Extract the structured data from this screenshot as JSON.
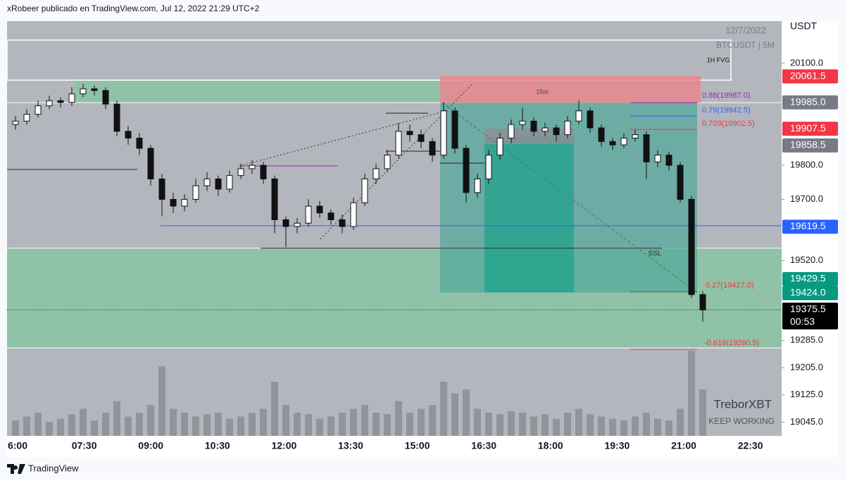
{
  "header": {
    "text": "xRobeer publicado en TradingView.com, Jul 12, 2022 21:29 UTC+2"
  },
  "footer": {
    "brand": "TradingView"
  },
  "chart_data": {
    "type": "candlestick",
    "date": "12/7/2022",
    "symbol": "BTCUSDT | 5M",
    "currency": "USDT",
    "ylim": [
      19004.5,
      20224
    ],
    "yticks": [
      {
        "value": 20100,
        "label": "20100.0"
      },
      {
        "value": 19800,
        "label": "19800.0"
      },
      {
        "value": 19700,
        "label": "19700.0"
      },
      {
        "value": 19520,
        "label": "19520.0"
      },
      {
        "value": 19285,
        "label": "19285.0"
      },
      {
        "value": 19205,
        "label": "19205.0"
      },
      {
        "value": 19125,
        "label": "19125.0"
      },
      {
        "value": 19045,
        "label": "19045.0"
      }
    ],
    "xticks": [
      "6:00",
      "07:30",
      "09:00",
      "10:30",
      "12:00",
      "13:30",
      "15:00",
      "16:30",
      "18:00",
      "19:30",
      "21:00",
      "22:30"
    ],
    "price_labels": [
      {
        "value": 20061.5,
        "label": "20061.5",
        "color": "#f23645"
      },
      {
        "value": 19985,
        "label": "19985.0",
        "color": "#787b86"
      },
      {
        "value": 19907.5,
        "label": "19907.5",
        "color": "#f23645"
      },
      {
        "value": 19858.5,
        "label": "19858.5",
        "color": "#787b86"
      },
      {
        "value": 19619.5,
        "label": "19619.5",
        "color": "#2962ff"
      },
      {
        "value": 19429.5,
        "label": "19429.5",
        "color": "#089981"
      },
      {
        "value": 19424,
        "label": "19424.0",
        "color": "#089981"
      },
      {
        "value": 19375.5,
        "label": "19375.5",
        "color": "#000000"
      }
    ],
    "countdown": "00:53",
    "annotations": {
      "fvg": "1H FVG",
      "tf": "15m",
      "ssl": "SSL",
      "fib088": "0.88(19987.0)",
      "fib079": "0.79(19942.5)",
      "fib0709": "0.709(19902.5)",
      "fib027": "0.27(19427.0)",
      "fib0618": "-0.618(19260.5)",
      "author": "TreborXBT",
      "motto": "KEEP WORKING"
    },
    "candles": [
      [
        19920,
        19945,
        19905,
        19930
      ],
      [
        19930,
        19965,
        19920,
        19950
      ],
      [
        19950,
        19990,
        19940,
        19975
      ],
      [
        19975,
        20005,
        19965,
        19990
      ],
      [
        19990,
        20000,
        19970,
        19985
      ],
      [
        19985,
        20030,
        19975,
        20010
      ],
      [
        20010,
        20040,
        20000,
        20025
      ],
      [
        20025,
        20035,
        20005,
        20020
      ],
      [
        20020,
        20030,
        19965,
        19980
      ],
      [
        19980,
        19990,
        19885,
        19900
      ],
      [
        19900,
        19915,
        19860,
        19880
      ],
      [
        19880,
        19895,
        19830,
        19850
      ],
      [
        19850,
        19860,
        19740,
        19760
      ],
      [
        19760,
        19775,
        19650,
        19700
      ],
      [
        19700,
        19720,
        19660,
        19680
      ],
      [
        19680,
        19715,
        19665,
        19700
      ],
      [
        19700,
        19760,
        19690,
        19740
      ],
      [
        19740,
        19780,
        19725,
        19760
      ],
      [
        19760,
        19770,
        19710,
        19730
      ],
      [
        19730,
        19785,
        19720,
        19770
      ],
      [
        19770,
        19805,
        19760,
        19790
      ],
      [
        19790,
        19815,
        19775,
        19800
      ],
      [
        19800,
        19810,
        19745,
        19760
      ],
      [
        19760,
        19770,
        19600,
        19640
      ],
      [
        19640,
        19650,
        19560,
        19620
      ],
      [
        19620,
        19645,
        19600,
        19630
      ],
      [
        19630,
        19700,
        19620,
        19680
      ],
      [
        19680,
        19695,
        19645,
        19660
      ],
      [
        19660,
        19670,
        19625,
        19640
      ],
      [
        19640,
        19655,
        19600,
        19620
      ],
      [
        19620,
        19705,
        19610,
        19690
      ],
      [
        19690,
        19775,
        19680,
        19760
      ],
      [
        19760,
        19805,
        19745,
        19790
      ],
      [
        19790,
        19845,
        19780,
        19830
      ],
      [
        19830,
        19925,
        19820,
        19900
      ],
      [
        19900,
        19920,
        19870,
        19890
      ],
      [
        19890,
        19905,
        19850,
        19870
      ],
      [
        19870,
        19880,
        19810,
        19830
      ],
      [
        19830,
        19985,
        19820,
        19960
      ],
      [
        19960,
        19970,
        19835,
        19850
      ],
      [
        19850,
        19860,
        19690,
        19720
      ],
      [
        19720,
        19775,
        19705,
        19760
      ],
      [
        19760,
        19845,
        19745,
        19830
      ],
      [
        19830,
        19895,
        19815,
        19880
      ],
      [
        19880,
        19935,
        19865,
        19920
      ],
      [
        19920,
        19970,
        19905,
        19930
      ],
      [
        19930,
        19940,
        19885,
        19900
      ],
      [
        19900,
        19925,
        19885,
        19910
      ],
      [
        19910,
        19920,
        19870,
        19890
      ],
      [
        19890,
        19945,
        19880,
        19930
      ],
      [
        19930,
        19990,
        19920,
        19960
      ],
      [
        19960,
        19970,
        19895,
        19910
      ],
      [
        19910,
        19920,
        19855,
        19870
      ],
      [
        19870,
        19880,
        19845,
        19860
      ],
      [
        19860,
        19895,
        19850,
        19880
      ],
      [
        19880,
        19905,
        19870,
        19890
      ],
      [
        19890,
        19900,
        19760,
        19810
      ],
      [
        19810,
        19845,
        19795,
        19830
      ],
      [
        19830,
        19840,
        19785,
        19800
      ],
      [
        19800,
        19810,
        19690,
        19700
      ],
      [
        19700,
        19710,
        19410,
        19420
      ],
      [
        19420,
        19430,
        19340,
        19375
      ]
    ],
    "volumes": [
      20,
      25,
      30,
      18,
      22,
      28,
      35,
      20,
      30,
      45,
      25,
      30,
      40,
      90,
      35,
      30,
      25,
      28,
      30,
      22,
      25,
      30,
      35,
      70,
      40,
      30,
      28,
      22,
      25,
      30,
      35,
      40,
      30,
      28,
      45,
      30,
      35,
      40,
      70,
      55,
      60,
      35,
      30,
      28,
      32,
      30,
      25,
      28,
      22,
      30,
      35,
      28,
      25,
      22,
      20,
      25,
      30,
      22,
      20,
      35,
      110,
      60
    ]
  }
}
